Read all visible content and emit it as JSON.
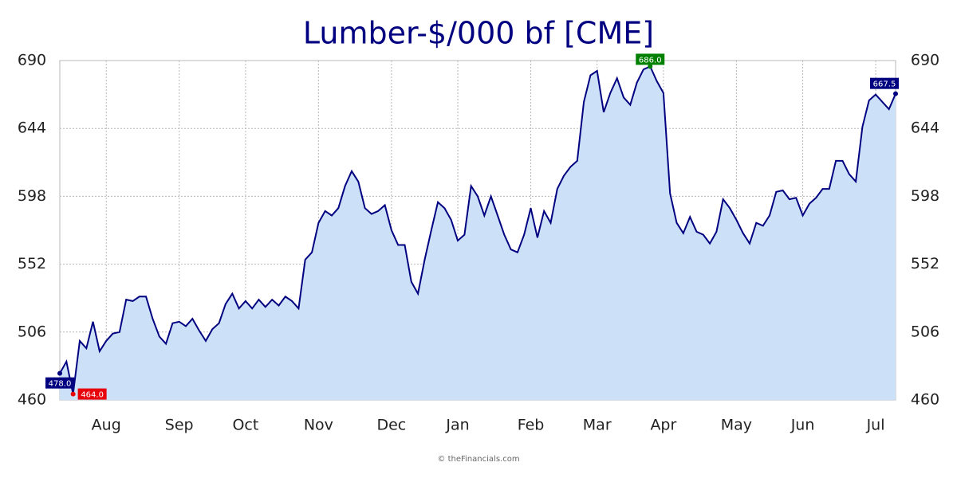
{
  "chart_data": {
    "type": "area",
    "title": "Lumber-$/000 bf [CME]",
    "credit": "© theFinancials.com",
    "categories": [
      null,
      null,
      null,
      null,
      null,
      null,
      null,
      "Aug",
      null,
      null,
      null,
      null,
      null,
      null,
      null,
      null,
      null,
      null,
      "Sep",
      null,
      null,
      null,
      null,
      null,
      null,
      null,
      null,
      null,
      "Oct",
      null,
      null,
      null,
      null,
      null,
      null,
      null,
      null,
      null,
      null,
      "Nov",
      null,
      null,
      null,
      null,
      null,
      null,
      null,
      null,
      null,
      null,
      "Dec",
      null,
      null,
      null,
      null,
      null,
      null,
      null,
      null,
      null,
      "Jan",
      null,
      null,
      null,
      null,
      null,
      null,
      null,
      null,
      null,
      null,
      "Feb",
      null,
      null,
      null,
      null,
      null,
      null,
      null,
      null,
      null,
      "Mar",
      null,
      null,
      null,
      null,
      null,
      null,
      null,
      null,
      null,
      "Apr",
      null,
      null,
      null,
      null,
      null,
      null,
      null,
      null,
      null,
      null,
      "May",
      null,
      null,
      null,
      null,
      null,
      null,
      null,
      null,
      null,
      "Jun",
      null,
      null,
      null,
      null,
      null,
      null,
      null,
      null,
      null,
      null,
      "Jul",
      null,
      null,
      null
    ],
    "series": [
      {
        "color": "#000080",
        "fill": "#cce0f7",
        "values": [
          478,
          486,
          464,
          500,
          495,
          513,
          493,
          500,
          505,
          506,
          528,
          527,
          530,
          530,
          515,
          503,
          498,
          512,
          513,
          510,
          515,
          507,
          500,
          508,
          512,
          525,
          532,
          522,
          527,
          522,
          528,
          523,
          528,
          524,
          530,
          527,
          522,
          555,
          560,
          580,
          588,
          585,
          590,
          605,
          615,
          608,
          590,
          586,
          588,
          592,
          575,
          565,
          565,
          540,
          532,
          555,
          575,
          594,
          590,
          582,
          568,
          572,
          605,
          598,
          585,
          598,
          585,
          572,
          562,
          560,
          572,
          590,
          570,
          588,
          580,
          603,
          612,
          618,
          622,
          662,
          680,
          683,
          655,
          668,
          678,
          665,
          660,
          675,
          684,
          686,
          676,
          668,
          600,
          580,
          573,
          584,
          574,
          572,
          566,
          574,
          596,
          590,
          582,
          573,
          566,
          580,
          578,
          585,
          601,
          602,
          596,
          597,
          585,
          593,
          597,
          603,
          603,
          622,
          622,
          613,
          608,
          645,
          663,
          667,
          662,
          657,
          667.5
        ],
        "value_labels": [
          "478.0",
          null,
          "464.0",
          null,
          null,
          null,
          null,
          null,
          null,
          null,
          null,
          null,
          null,
          null,
          null,
          null,
          null,
          null,
          null,
          null,
          null,
          null,
          null,
          null,
          null,
          null,
          null,
          null,
          null,
          null,
          null,
          null,
          null,
          null,
          null,
          null,
          null,
          null,
          null,
          null,
          null,
          null,
          null,
          null,
          null,
          null,
          null,
          null,
          null,
          null,
          null,
          null,
          null,
          null,
          null,
          null,
          null,
          null,
          null,
          null,
          null,
          null,
          null,
          null,
          null,
          null,
          null,
          null,
          null,
          null,
          null,
          null,
          null,
          null,
          null,
          null,
          null,
          null,
          null,
          null,
          null,
          null,
          null,
          null,
          null,
          null,
          null,
          null,
          null,
          "686.0",
          null,
          null,
          null,
          null,
          null,
          null,
          null,
          null,
          null,
          null,
          null,
          null,
          null,
          null,
          null,
          null,
          null,
          null,
          null,
          null,
          null,
          null,
          null,
          null,
          null,
          null,
          null,
          null,
          null,
          null,
          null,
          null,
          null,
          null,
          null,
          null,
          "667.5"
        ],
        "value_label_colors": [
          "#000080",
          null,
          "#e8000b",
          null,
          null,
          null,
          null,
          null,
          null,
          null,
          null,
          null,
          null,
          null,
          null,
          null,
          null,
          null,
          null,
          null,
          null,
          null,
          null,
          null,
          null,
          null,
          null,
          null,
          null,
          null,
          null,
          null,
          null,
          null,
          null,
          null,
          null,
          null,
          null,
          null,
          null,
          null,
          null,
          null,
          null,
          null,
          null,
          null,
          null,
          null,
          null,
          null,
          null,
          null,
          null,
          null,
          null,
          null,
          null,
          null,
          null,
          null,
          null,
          null,
          null,
          null,
          null,
          null,
          null,
          null,
          null,
          null,
          null,
          null,
          null,
          null,
          null,
          null,
          null,
          null,
          null,
          null,
          null,
          null,
          null,
          null,
          null,
          null,
          null,
          "#008000",
          null,
          null,
          null,
          null,
          null,
          null,
          null,
          null,
          null,
          null,
          null,
          null,
          null,
          null,
          null,
          null,
          null,
          null,
          null,
          null,
          null,
          null,
          null,
          null,
          null,
          null,
          null,
          null,
          null,
          null,
          null,
          null,
          null,
          null,
          null,
          null,
          "#000080"
        ]
      }
    ],
    "ylim": [
      460,
      690
    ],
    "yticks": [
      460,
      506,
      552,
      598,
      644,
      690
    ],
    "grid": true,
    "right_axis": true
  }
}
